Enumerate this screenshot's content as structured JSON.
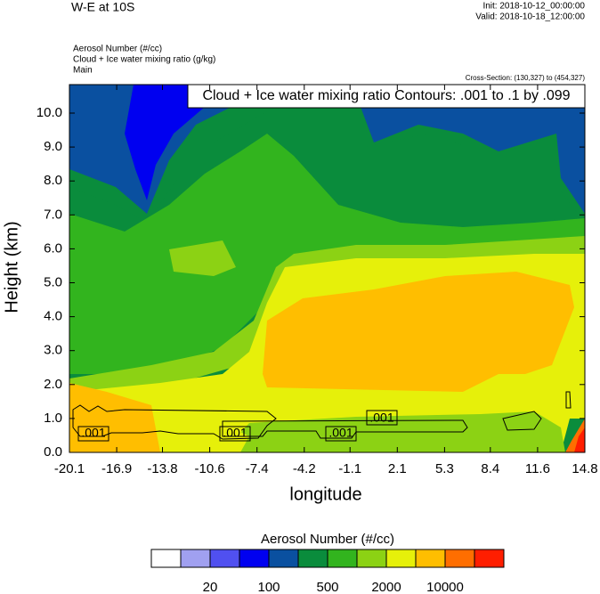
{
  "chart_data": {
    "type": "contour",
    "title": "W-E at 10S",
    "init": "Init: 2018-10-12_00:00:00",
    "valid": "Valid: 2018-10-18_12:00:00",
    "field_labels": [
      "Aerosol Number   (#/cc)",
      "Cloud + Ice water mixing ratio   (g/kg)",
      "Main"
    ],
    "cross_section": "Cross-Section: (130,327) to (454,327)",
    "contour_note": "Cloud + Ice water mixing ratio Contours: .001 to .1 by .099",
    "contour_labels": [
      ".001",
      ".001",
      ".001",
      ".001"
    ],
    "xlabel": "longitude",
    "ylabel": "Height (km)",
    "xlim": [
      -20.1,
      14.8
    ],
    "xticks": [
      -20.1,
      -16.9,
      -13.8,
      -10.6,
      -7.4,
      -4.2,
      -1.1,
      2.1,
      5.3,
      8.4,
      11.6,
      14.8
    ],
    "ylim": [
      0,
      10.84
    ],
    "yticks": [
      {
        "value": 0,
        "label": "0.0"
      },
      {
        "value": 1,
        "label": "1.0"
      },
      {
        "value": 2,
        "label": "2.0"
      },
      {
        "value": 3,
        "label": "3.0"
      },
      {
        "value": 4,
        "label": "4.0"
      },
      {
        "value": 5,
        "label": "5.0"
      },
      {
        "value": 6,
        "label": "6.0"
      },
      {
        "value": 7,
        "label": "7.0"
      },
      {
        "value": 8,
        "label": "8.0"
      },
      {
        "value": 9,
        "label": "9.0"
      },
      {
        "value": 10,
        "label": "10.0"
      }
    ],
    "colorbar": {
      "title": "Aerosol Number  (#/cc)",
      "colors": [
        "#ffffff",
        "#a0a0f0",
        "#5050f0",
        "#0000f0",
        "#0a50a0",
        "#0a8c3c",
        "#32b41e",
        "#8cd214",
        "#e6f00a",
        "#ffbe00",
        "#ff6e00",
        "#ff1e00"
      ],
      "ticks": [
        20,
        100,
        500,
        2000,
        10000
      ]
    }
  }
}
